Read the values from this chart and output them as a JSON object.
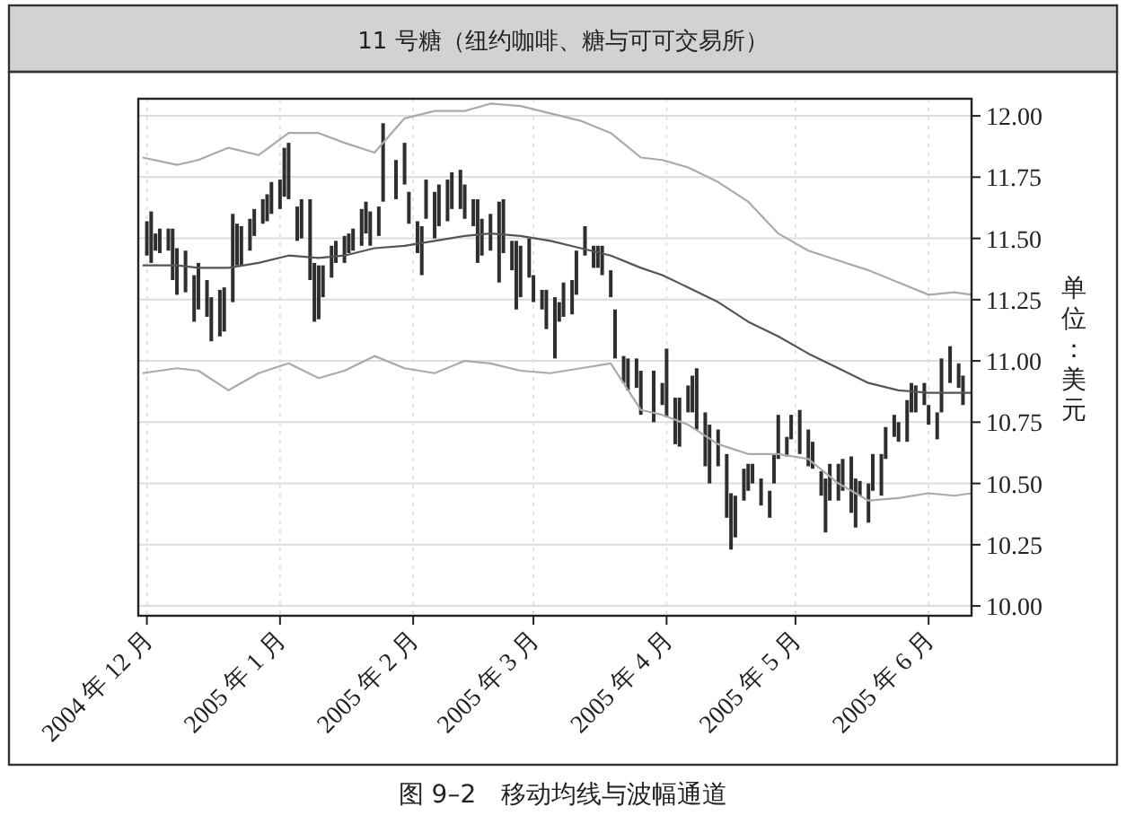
{
  "chart_data": {
    "type": "bar",
    "title": "11 号糖（纽约咖啡、糖与可可交易所）",
    "ylabel": "单位：美元",
    "annotations": [
      "图 9–2　移动均线与波幅通道"
    ],
    "xlim": [
      "2004-11-29",
      "2005-06-11"
    ],
    "ylim": [
      9.96,
      12.07
    ],
    "xticks": [
      {
        "value": "2004-12-01",
        "label": "2004 年 12 月"
      },
      {
        "value": "2005-01-01",
        "label": "2005 年 1 月"
      },
      {
        "value": "2005-02-01",
        "label": "2005 年 2 月"
      },
      {
        "value": "2005-03-01",
        "label": "2005 年 3 月"
      },
      {
        "value": "2005-04-01",
        "label": "2005 年 4 月"
      },
      {
        "value": "2005-05-01",
        "label": "2005 年 5 月"
      },
      {
        "value": "2005-06-01",
        "label": "2005 年 6 月"
      }
    ],
    "yticks": [
      {
        "value": 10,
        "label": "10.00"
      },
      10.25,
      {
        "value": 10.5,
        "label": "10.50"
      },
      10.75,
      {
        "value": 11,
        "label": "11.00"
      },
      11.25,
      {
        "value": 11.5,
        "label": "11.50"
      },
      11.75,
      {
        "value": 12,
        "label": "12.00"
      }
    ],
    "grid": true,
    "series": [
      {
        "color": "#2e2e2e",
        "x": [
          "2004-12-01",
          "2004-12-02",
          "2004-12-03",
          "2004-12-04",
          "2004-12-06",
          "2004-12-07",
          "2004-12-08",
          "2004-12-10",
          "2004-12-12",
          "2004-12-13",
          "2004-12-15",
          "2004-12-16",
          "2004-12-18",
          "2004-12-19",
          "2004-12-21",
          "2004-12-22",
          "2004-12-23",
          "2004-12-25",
          "2004-12-26",
          "2004-12-28",
          "2004-12-29",
          "2004-12-30",
          "2005-01-01",
          "2005-01-02",
          "2005-01-03",
          "2005-01-05",
          "2005-01-06",
          "2005-01-08",
          "2005-01-09",
          "2005-01-10",
          "2005-01-11",
          "2005-01-13",
          "2005-01-14",
          "2005-01-16",
          "2005-01-17",
          "2005-01-18",
          "2005-01-20",
          "2005-01-21",
          "2005-01-22",
          "2005-01-24",
          "2005-01-25",
          "2005-01-28",
          "2005-01-30",
          "2005-01-31",
          "2005-02-02",
          "2005-02-03",
          "2005-02-04",
          "2005-02-06",
          "2005-02-07",
          "2005-02-09",
          "2005-02-10",
          "2005-02-12",
          "2005-02-13",
          "2005-02-15",
          "2005-02-16",
          "2005-02-17",
          "2005-02-19",
          "2005-02-21",
          "2005-02-22",
          "2005-02-24",
          "2005-02-25",
          "2005-02-26",
          "2005-02-28",
          "2005-03-01",
          "2005-03-03",
          "2005-03-04",
          "2005-03-06",
          "2005-03-07",
          "2005-03-08",
          "2005-03-10",
          "2005-03-11",
          "2005-03-13",
          "2005-03-15",
          "2005-03-16",
          "2005-03-17",
          "2005-03-19",
          "2005-03-20",
          "2005-03-22",
          "2005-03-23",
          "2005-03-25",
          "2005-03-26",
          "2005-03-29",
          "2005-03-31",
          "2005-04-01",
          "2005-04-03",
          "2005-04-04",
          "2005-04-06",
          "2005-04-07",
          "2005-04-08",
          "2005-04-10",
          "2005-04-11",
          "2005-04-13",
          "2005-04-15",
          "2005-04-16",
          "2005-04-17",
          "2005-04-19",
          "2005-04-20",
          "2005-04-21",
          "2005-04-23",
          "2005-04-25",
          "2005-04-26",
          "2005-04-27",
          "2005-04-29",
          "2005-04-30",
          "2005-05-02",
          "2005-05-04",
          "2005-05-05",
          "2005-05-07",
          "2005-05-08",
          "2005-05-09",
          "2005-05-11",
          "2005-05-12",
          "2005-05-14",
          "2005-05-15",
          "2005-05-16",
          "2005-05-18",
          "2005-05-19",
          "2005-05-21",
          "2005-05-22",
          "2005-05-24",
          "2005-05-25",
          "2005-05-27",
          "2005-05-28",
          "2005-05-29",
          "2005-05-31",
          "2005-06-01",
          "2005-06-03",
          "2005-06-04",
          "2005-06-06",
          "2005-06-08",
          "2005-06-09"
        ],
        "base": [
          11.43,
          11.4,
          11.45,
          11.44,
          11.45,
          11.33,
          11.27,
          11.28,
          11.16,
          11.21,
          11.18,
          11.08,
          11.1,
          11.12,
          11.24,
          11.39,
          11.39,
          11.45,
          11.51,
          11.56,
          11.57,
          11.6,
          11.62,
          11.67,
          11.66,
          11.49,
          11.5,
          11.33,
          11.16,
          11.17,
          11.26,
          11.34,
          11.4,
          11.4,
          11.44,
          11.45,
          11.47,
          11.52,
          11.47,
          11.51,
          11.65,
          11.66,
          11.72,
          11.56,
          11.44,
          11.35,
          11.58,
          11.5,
          11.55,
          11.57,
          11.62,
          11.62,
          11.58,
          11.55,
          11.4,
          11.43,
          11.45,
          11.32,
          11.44,
          11.37,
          11.21,
          11.26,
          11.34,
          11.24,
          11.21,
          11.13,
          11.01,
          11.16,
          11.18,
          11.19,
          11.27,
          11.43,
          11.38,
          11.38,
          11.35,
          11.26,
          11.01,
          10.91,
          10.88,
          10.89,
          10.78,
          10.75,
          10.82,
          10.77,
          10.66,
          10.65,
          10.79,
          10.79,
          10.72,
          10.57,
          10.5,
          10.57,
          10.36,
          10.23,
          10.28,
          10.43,
          10.47,
          10.5,
          10.41,
          10.36,
          10.5,
          10.6,
          10.61,
          10.68,
          10.62,
          10.57,
          10.56,
          10.45,
          10.3,
          10.43,
          10.43,
          10.47,
          10.38,
          10.32,
          10.45,
          10.34,
          10.47,
          10.45,
          10.6,
          10.69,
          10.67,
          10.67,
          10.79,
          10.79,
          10.82,
          10.74,
          10.68,
          10.79,
          10.91,
          10.89,
          10.82
        ],
        "values": [
          0.14,
          0.21,
          0.07,
          0.1,
          0.09,
          0.21,
          0.19,
          0.17,
          0.19,
          0.19,
          0.15,
          0.18,
          0.19,
          0.18,
          0.36,
          0.17,
          0.16,
          0.13,
          0.11,
          0.1,
          0.11,
          0.13,
          0.12,
          0.2,
          0.23,
          0.14,
          0.16,
          0.33,
          0.24,
          0.22,
          0.13,
          0.13,
          0.09,
          0.11,
          0.08,
          0.09,
          0.15,
          0.13,
          0.14,
          0.12,
          0.32,
          0.16,
          0.17,
          0.13,
          0.13,
          0.2,
          0.16,
          0.19,
          0.17,
          0.17,
          0.15,
          0.16,
          0.14,
          0.11,
          0.26,
          0.15,
          0.15,
          0.33,
          0.22,
          0.12,
          0.28,
          0.21,
          0.16,
          0.11,
          0.08,
          0.16,
          0.25,
          0.08,
          0.14,
          0.14,
          0.18,
          0.12,
          0.09,
          0.09,
          0.12,
          0.11,
          0.2,
          0.11,
          0.13,
          0.12,
          0.18,
          0.21,
          0.09,
          0.28,
          0.19,
          0.2,
          0.11,
          0.15,
          0.25,
          0.22,
          0.24,
          0.15,
          0.26,
          0.23,
          0.17,
          0.13,
          0.11,
          0.08,
          0.11,
          0.11,
          0.12,
          0.18,
          0.08,
          0.1,
          0.18,
          0.15,
          0.11,
          0.1,
          0.22,
          0.15,
          0.15,
          0.13,
          0.23,
          0.2,
          0.06,
          0.16,
          0.15,
          0.17,
          0.13,
          0.09,
          0.08,
          0.17,
          0.12,
          0.11,
          0.09,
          0.08,
          0.11,
          0.22,
          0.15,
          0.1,
          0.12
        ]
      },
      {
        "type": "line",
        "color": "#aaaaaa",
        "x": [
          "2004-11-30",
          "2004-12-08",
          "2004-12-13",
          "2004-12-20",
          "2004-12-27",
          "2005-01-03",
          "2005-01-10",
          "2005-01-16",
          "2005-01-23",
          "2005-01-30",
          "2005-02-06",
          "2005-02-13",
          "2005-02-19",
          "2005-02-26",
          "2005-03-05",
          "2005-03-12",
          "2005-03-19",
          "2005-03-26",
          "2005-03-31",
          "2005-04-06",
          "2005-04-13",
          "2005-04-20",
          "2005-04-27",
          "2005-05-04",
          "2005-05-11",
          "2005-05-18",
          "2005-05-25",
          "2005-06-01",
          "2005-06-07",
          "2005-06-11"
        ],
        "values": [
          11.83,
          11.8,
          11.82,
          11.87,
          11.84,
          11.93,
          11.93,
          11.89,
          11.85,
          11.99,
          12.02,
          12.02,
          12.05,
          12.04,
          12.01,
          11.98,
          11.93,
          11.83,
          11.82,
          11.79,
          11.73,
          11.65,
          11.52,
          11.45,
          11.41,
          11.37,
          11.32,
          11.27,
          11.28,
          11.27
        ]
      },
      {
        "type": "line",
        "color": "#555555",
        "x": [
          "2004-11-30",
          "2004-12-08",
          "2004-12-13",
          "2004-12-20",
          "2004-12-27",
          "2005-01-03",
          "2005-01-10",
          "2005-01-16",
          "2005-01-23",
          "2005-01-30",
          "2005-02-06",
          "2005-02-13",
          "2005-02-19",
          "2005-02-26",
          "2005-03-05",
          "2005-03-12",
          "2005-03-19",
          "2005-03-26",
          "2005-03-31",
          "2005-04-06",
          "2005-04-13",
          "2005-04-20",
          "2005-04-27",
          "2005-05-04",
          "2005-05-11",
          "2005-05-18",
          "2005-05-25",
          "2005-06-01",
          "2005-06-07",
          "2005-06-11"
        ],
        "values": [
          11.39,
          11.39,
          11.38,
          11.38,
          11.4,
          11.43,
          11.42,
          11.43,
          11.46,
          11.47,
          11.49,
          11.51,
          11.52,
          11.51,
          11.49,
          11.46,
          11.43,
          11.38,
          11.35,
          11.3,
          11.24,
          11.16,
          11.1,
          11.03,
          10.97,
          10.91,
          10.88,
          10.87,
          10.87,
          10.87
        ]
      },
      {
        "type": "line",
        "color": "#aaaaaa",
        "x": [
          "2004-11-30",
          "2004-12-08",
          "2004-12-13",
          "2004-12-20",
          "2004-12-27",
          "2005-01-03",
          "2005-01-10",
          "2005-01-16",
          "2005-01-23",
          "2005-01-30",
          "2005-02-06",
          "2005-02-13",
          "2005-02-19",
          "2005-02-26",
          "2005-03-05",
          "2005-03-12",
          "2005-03-19",
          "2005-03-26",
          "2005-03-31",
          "2005-04-06",
          "2005-04-13",
          "2005-04-20",
          "2005-04-27",
          "2005-05-04",
          "2005-05-11",
          "2005-05-18",
          "2005-05-25",
          "2005-06-01",
          "2005-06-07",
          "2005-06-11"
        ],
        "values": [
          10.95,
          10.97,
          10.96,
          10.88,
          10.95,
          10.99,
          10.93,
          10.96,
          11.02,
          10.97,
          10.95,
          11.0,
          10.99,
          10.96,
          10.95,
          10.97,
          10.99,
          10.8,
          10.78,
          10.74,
          10.66,
          10.62,
          10.62,
          10.6,
          10.5,
          10.43,
          10.44,
          10.46,
          10.45,
          10.46
        ]
      }
    ]
  }
}
